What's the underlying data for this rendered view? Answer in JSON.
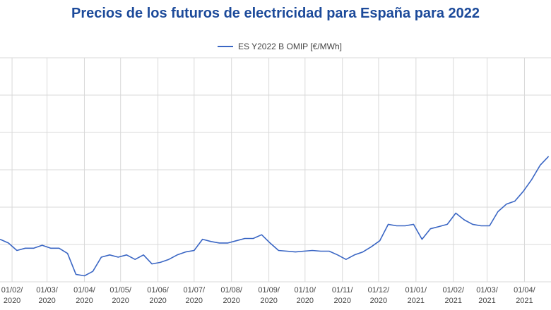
{
  "chart_data": {
    "type": "line",
    "title": "Precios de los futuros de electricidad para España para 2022",
    "grid": true,
    "xlim": [
      "2020-01-22",
      "2021-04-23"
    ],
    "xticks": [
      {
        "value": "2020-02-01",
        "label": "01/02/ 2020"
      },
      {
        "value": "2020-03-01",
        "label": "01/03/ 2020"
      },
      {
        "value": "2020-04-01",
        "label": "01/04/ 2020"
      },
      {
        "value": "2020-05-01",
        "label": "01/05/ 2020"
      },
      {
        "value": "2020-06-01",
        "label": "01/06/ 2020"
      },
      {
        "value": "2020-07-01",
        "label": "01/07/ 2020"
      },
      {
        "value": "2020-08-01",
        "label": "01/08/ 2020"
      },
      {
        "value": "2020-09-01",
        "label": "01/09/ 2020"
      },
      {
        "value": "2020-10-01",
        "label": "01/10/ 2020"
      },
      {
        "value": "2020-11-01",
        "label": "01/11/ 2020"
      },
      {
        "value": "2020-12-01",
        "label": "01/12/ 2020"
      },
      {
        "value": "2021-01-01",
        "label": "01/01/ 2021"
      },
      {
        "value": "2021-02-01",
        "label": "01/02/ 2021"
      },
      {
        "value": "2021-03-01",
        "label": "01/03/ 2021"
      },
      {
        "value": "2021-04-01",
        "label": "01/04/ 2021"
      }
    ],
    "ylim": [
      40,
      70
    ],
    "ygrid": [
      40,
      45,
      50,
      55,
      60,
      65,
      70
    ],
    "x": [
      "2020-01-22",
      "2020-01-29",
      "2020-02-05",
      "2020-02-12",
      "2020-02-19",
      "2020-02-26",
      "2020-03-04",
      "2020-03-11",
      "2020-03-18",
      "2020-03-25",
      "2020-04-01",
      "2020-04-08",
      "2020-04-15",
      "2020-04-22",
      "2020-04-29",
      "2020-05-06",
      "2020-05-13",
      "2020-05-20",
      "2020-05-27",
      "2020-06-03",
      "2020-06-10",
      "2020-06-17",
      "2020-06-24",
      "2020-07-01",
      "2020-07-08",
      "2020-07-15",
      "2020-07-22",
      "2020-07-29",
      "2020-08-05",
      "2020-08-12",
      "2020-08-19",
      "2020-08-26",
      "2020-09-02",
      "2020-09-09",
      "2020-09-16",
      "2020-09-23",
      "2020-09-30",
      "2020-10-07",
      "2020-10-14",
      "2020-10-21",
      "2020-10-28",
      "2020-11-04",
      "2020-11-11",
      "2020-11-18",
      "2020-11-25",
      "2020-12-02",
      "2020-12-09",
      "2020-12-16",
      "2020-12-23",
      "2020-12-30",
      "2021-01-06",
      "2021-01-13",
      "2021-01-20",
      "2021-01-27",
      "2021-02-03",
      "2021-02-10",
      "2021-02-17",
      "2021-02-24",
      "2021-03-03",
      "2021-03-10",
      "2021-03-17",
      "2021-03-24",
      "2021-03-31",
      "2021-04-07",
      "2021-04-14",
      "2021-04-21"
    ],
    "series": [
      {
        "name": "ES Y2022 B OMIP [€/MWh]",
        "color": "#3a66c4",
        "values": [
          45.7,
          45.2,
          44.2,
          44.5,
          44.5,
          44.9,
          44.5,
          44.5,
          43.8,
          41,
          40.8,
          41.4,
          43.3,
          43.6,
          43.3,
          43.6,
          43,
          43.6,
          42.4,
          42.6,
          43,
          43.6,
          44,
          44.2,
          45.7,
          45.4,
          45.2,
          45.2,
          45.5,
          45.8,
          45.8,
          46.3,
          45.2,
          44.2,
          44.1,
          44,
          44.1,
          44.2,
          44.1,
          44.1,
          43.6,
          43,
          43.6,
          44,
          44.7,
          45.5,
          47.7,
          47.5,
          47.5,
          47.7,
          45.7,
          47.1,
          47.4,
          47.7,
          49.2,
          48.3,
          47.7,
          47.5,
          47.5,
          49.4,
          50.4,
          50.8,
          52.1,
          53.7,
          55.6,
          56.8
        ]
      }
    ]
  }
}
